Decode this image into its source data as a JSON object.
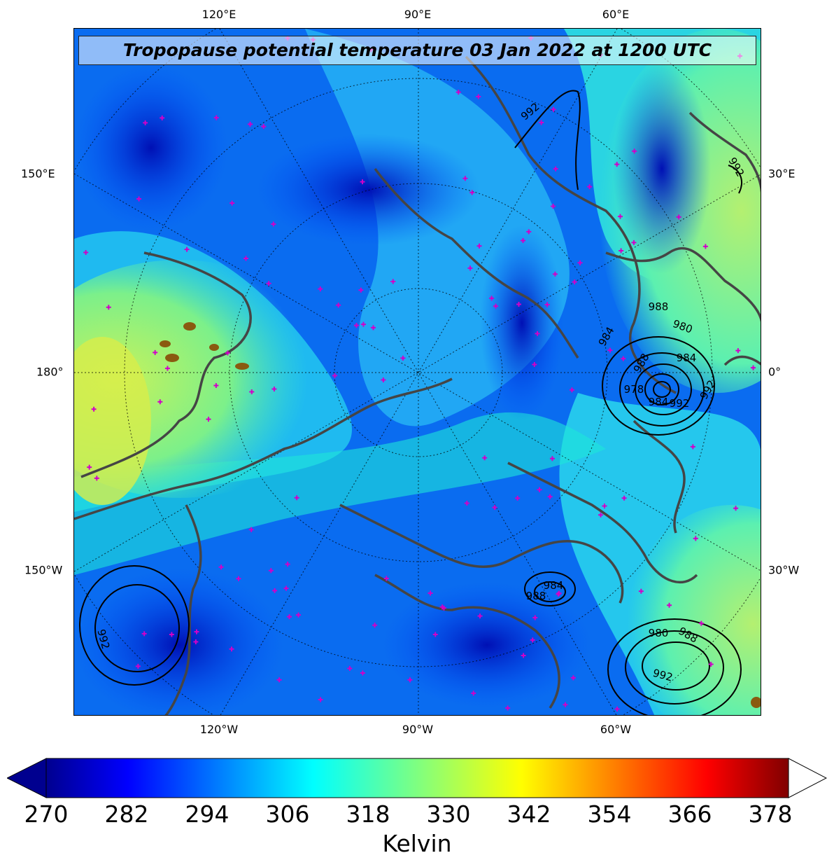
{
  "title": "Tropopause potential temperature 03 Jan 2022 at 1200 UTC",
  "map": {
    "projection": "polar-stereographic (north pole)",
    "field": "tropopause potential temperature",
    "colormap": "jet",
    "contour_lines": "black mean-sea-level pressure isobars",
    "marker_color": "#d100c8",
    "coastline_color": "#444444"
  },
  "axes": {
    "top_ticks": [
      "120°E",
      "90°E",
      "60°E"
    ],
    "bottom_ticks": [
      "120°W",
      "90°W",
      "60°W"
    ],
    "left_ticks": [
      "150°E",
      "180°",
      "150°W"
    ],
    "right_ticks": [
      "30°E",
      "0°",
      "30°W"
    ]
  },
  "pressure_labels": [
    "992",
    "992",
    "988",
    "984",
    "980",
    "984",
    "992",
    "978",
    "984",
    "988",
    "992",
    "980",
    "988",
    "992",
    "984",
    "988",
    "992"
  ],
  "colorbar": {
    "ticks": [
      "270",
      "282",
      "294",
      "306",
      "318",
      "330",
      "342",
      "354",
      "366",
      "378"
    ],
    "label": "Kelvin",
    "min": 270,
    "max": 381,
    "extend": "both"
  }
}
